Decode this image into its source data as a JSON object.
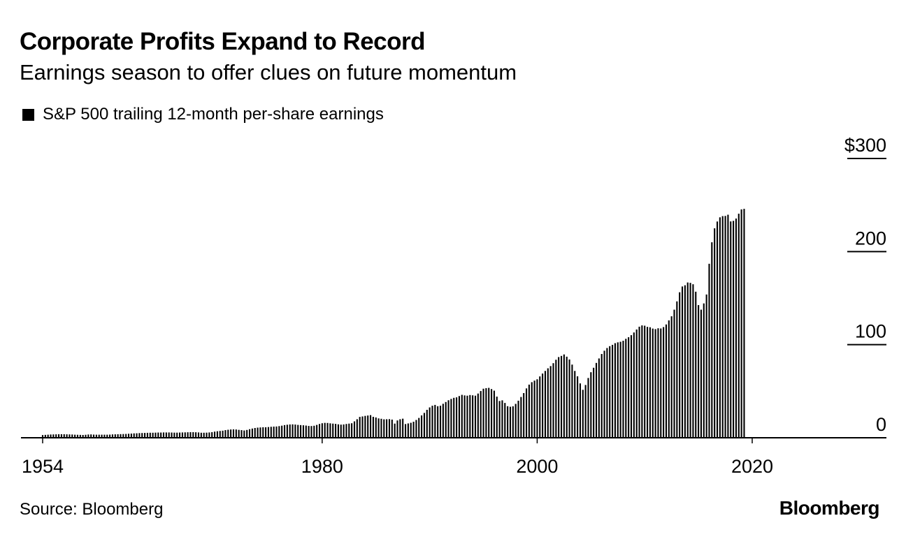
{
  "header": {
    "title": "Corporate Profits Expand to Record",
    "subtitle": "Earnings season to offer clues on future momentum"
  },
  "legend": {
    "label": "S&P 500 trailing 12-month per-share earnings"
  },
  "footer": {
    "source": "Source: Bloomberg",
    "brand": "Bloomberg"
  },
  "colors": {
    "bars": "#000000",
    "axis": "#000000",
    "background": "#ffffff"
  },
  "chart_data": {
    "type": "bar",
    "title": "Corporate Profits Expand to Record",
    "subtitle": "Earnings season to offer clues on future momentum",
    "series": [
      {
        "name": "S&P 500 trailing 12-month per-share earnings",
        "x_start": 1954.0,
        "x_step": 0.25,
        "values": [
          2.9,
          3.1,
          3.3,
          3.5,
          3.6,
          3.7,
          3.8,
          3.8,
          3.8,
          3.7,
          3.6,
          3.5,
          3.3,
          3.2,
          3.1,
          3.0,
          3.2,
          3.5,
          3.6,
          3.4,
          3.3,
          3.3,
          3.3,
          3.3,
          3.3,
          3.4,
          3.6,
          3.7,
          3.8,
          3.9,
          4.0,
          4.1,
          4.3,
          4.5,
          4.7,
          4.8,
          5.0,
          5.1,
          5.2,
          5.3,
          5.4,
          5.4,
          5.5,
          5.6,
          5.6,
          5.7,
          5.7,
          5.7,
          5.6,
          5.5,
          5.5,
          5.6,
          5.7,
          5.8,
          5.9,
          6.0,
          6.0,
          5.9,
          5.7,
          5.4,
          5.4,
          5.5,
          5.7,
          6.0,
          6.6,
          7.0,
          7.3,
          7.6,
          8.2,
          8.6,
          8.9,
          9.0,
          8.9,
          8.5,
          8.2,
          7.8,
          8.4,
          9.2,
          9.9,
          10.5,
          10.9,
          11.1,
          11.3,
          11.3,
          11.5,
          11.8,
          12.0,
          12.1,
          12.5,
          13.0,
          13.6,
          14.0,
          14.3,
          14.4,
          14.2,
          13.8,
          13.6,
          13.4,
          13.1,
          12.7,
          12.6,
          12.9,
          13.8,
          14.8,
          15.6,
          16.0,
          15.9,
          15.5,
          15.2,
          14.9,
          14.4,
          14.1,
          14.3,
          14.8,
          15.2,
          15.6,
          17.6,
          19.9,
          22.4,
          22.9,
          23.5,
          23.9,
          24.3,
          22.5,
          21.8,
          20.8,
          20.4,
          19.8,
          19.9,
          20.0,
          19.5,
          15.2,
          18.6,
          19.9,
          20.5,
          14.7,
          15.4,
          16.1,
          17.2,
          19.1,
          21.3,
          24.0,
          26.7,
          30.0,
          32.6,
          34.4,
          35.3,
          33.9,
          34.4,
          36.5,
          38.4,
          40.3,
          41.7,
          42.9,
          43.4,
          44.8,
          46.1,
          45.5,
          45.2,
          45.9,
          45.6,
          45.2,
          47.5,
          50.2,
          52.7,
          53.3,
          53.6,
          52.3,
          50.6,
          44.2,
          39.5,
          40.2,
          37.4,
          33.9,
          33.3,
          33.8,
          36.4,
          39.8,
          43.8,
          48.0,
          53.0,
          57.1,
          59.7,
          61.4,
          62.8,
          65.9,
          69.0,
          71.8,
          74.6,
          77.0,
          80.1,
          83.8,
          86.7,
          87.9,
          89.5,
          87.1,
          84.1,
          78.6,
          71.8,
          66.0,
          58.4,
          51.5,
          56.7,
          64.2,
          70.4,
          75.2,
          80.4,
          85.2,
          90.0,
          93.5,
          96.4,
          98.4,
          99.8,
          101.6,
          102.5,
          103.1,
          104.2,
          106.3,
          108.0,
          110.2,
          113.1,
          116.3,
          119.3,
          120.7,
          120.4,
          119.1,
          118.7,
          117.3,
          116.7,
          117.6,
          117.4,
          118.9,
          121.7,
          126.1,
          130.5,
          137.6,
          146.5,
          156.3,
          162.5,
          163.8,
          166.8,
          166.4,
          164.9,
          156.9,
          142.5,
          137.6,
          144.3,
          153.9,
          186.9,
          210.0,
          225.0,
          232.3,
          236.8,
          238.1,
          238.3,
          239.6,
          232.4,
          233.0,
          235.5,
          240.7,
          245.3,
          245.9
        ]
      }
    ],
    "x_tick_labels": [
      {
        "value": 1954,
        "label": "1954"
      },
      {
        "value": 1980,
        "label": "1980"
      },
      {
        "value": 2000,
        "label": "2000"
      },
      {
        "value": 2020,
        "label": "2020"
      }
    ],
    "y_tick_labels": [
      {
        "value": 0,
        "label": "0"
      },
      {
        "value": 100,
        "label": "100"
      },
      {
        "value": 200,
        "label": "200"
      },
      {
        "value": 300,
        "label": "$300"
      }
    ],
    "xlim": [
      1954,
      2032
    ],
    "ylim": [
      0,
      300
    ],
    "xlabel": "",
    "ylabel": "",
    "grid": false
  }
}
